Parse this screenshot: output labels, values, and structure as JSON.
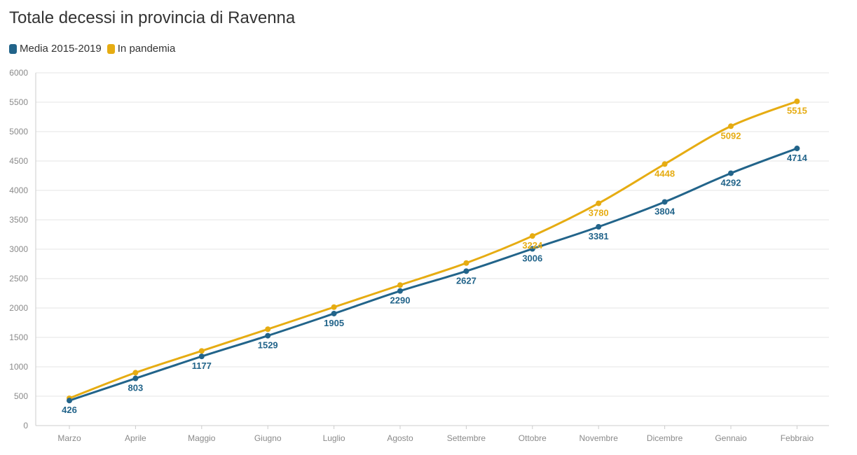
{
  "chart_data": {
    "type": "line",
    "title": "Totale decessi in provincia di Ravenna",
    "categories": [
      "Marzo",
      "Aprile",
      "Maggio",
      "Giugno",
      "Luglio",
      "Agosto",
      "Settembre",
      "Ottobre",
      "Novembre",
      "Dicembre",
      "Gennaio",
      "Febbraio"
    ],
    "ylim": [
      0,
      6000
    ],
    "yticks": [
      0,
      500,
      1000,
      1500,
      2000,
      2500,
      3000,
      3500,
      4000,
      4500,
      5000,
      5500,
      6000
    ],
    "grid": true,
    "legend_position": "top-left",
    "series": [
      {
        "name": "Media 2015-2019",
        "color": "#22648a",
        "values": [
          426,
          803,
          1177,
          1529,
          1905,
          2290,
          2627,
          3006,
          3381,
          3804,
          4292,
          4714
        ],
        "labels": [
          "426",
          "803",
          "1177",
          "1529",
          "1905",
          "2290",
          "2627",
          "3006",
          "3381",
          "3804",
          "4292",
          "4714"
        ]
      },
      {
        "name": "In pandemia",
        "color": "#e6ac12",
        "values": [
          465,
          900,
          1270,
          1640,
          2015,
          2390,
          2765,
          3224,
          3780,
          4448,
          5092,
          5515
        ],
        "labels": [
          null,
          null,
          null,
          null,
          null,
          null,
          null,
          "3224",
          "3780",
          "4448",
          "5092",
          "5515"
        ]
      }
    ]
  }
}
